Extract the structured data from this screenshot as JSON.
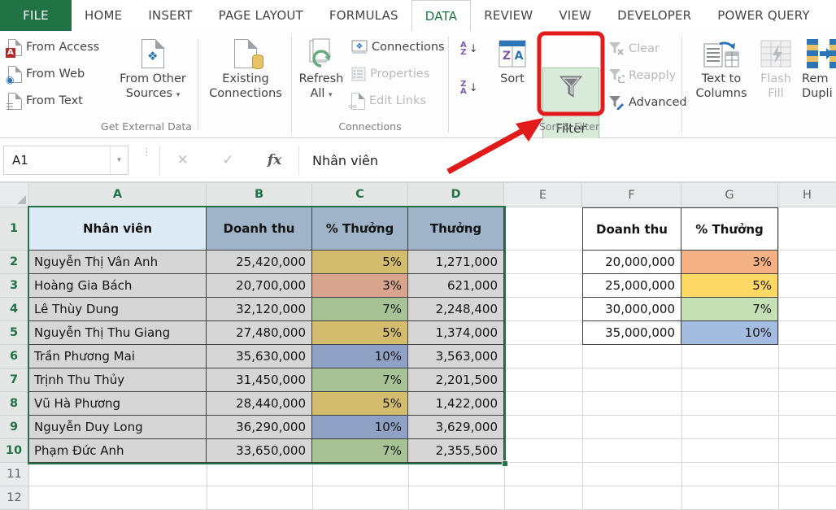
{
  "tabs": [
    {
      "label": "FILE",
      "style": "file"
    },
    {
      "label": "HOME",
      "style": ""
    },
    {
      "label": "INSERT",
      "style": ""
    },
    {
      "label": "PAGE LAYOUT",
      "style": ""
    },
    {
      "label": "FORMULAS",
      "style": ""
    },
    {
      "label": "DATA",
      "style": "active"
    },
    {
      "label": "REVIEW",
      "style": ""
    },
    {
      "label": "VIEW",
      "style": ""
    },
    {
      "label": "DEVELOPER",
      "style": ""
    },
    {
      "label": "POWER QUERY",
      "style": ""
    }
  ],
  "ribbon": {
    "get_external_data": {
      "label": "Get External Data",
      "from_access": "From Access",
      "from_web": "From Web",
      "from_text": "From Text",
      "from_other_l1": "From Other",
      "from_other_l2": "Sources",
      "existing_l1": "Existing",
      "existing_l2": "Connections"
    },
    "connections_group": {
      "label": "Connections",
      "refresh_l1": "Refresh",
      "refresh_l2": "All",
      "connections": "Connections",
      "properties": "Properties",
      "edit_links": "Edit Links"
    },
    "sort_filter": {
      "label": "Sort & Filter",
      "sort": "Sort",
      "filter": "Filter",
      "clear": "Clear",
      "reapply": "Reapply",
      "advanced": "Advanced"
    },
    "data_tools": {
      "text_to_columns_l1": "Text to",
      "text_to_columns_l2": "Columns",
      "flash_fill_l1": "Flash",
      "flash_fill_l2": "Fill",
      "remove_dup_l1": "Rem",
      "remove_dup_l2": "Dupli"
    }
  },
  "formula_bar": {
    "name_box": "A1",
    "fx": "fx",
    "value": "Nhân viên"
  },
  "grid": {
    "col_letters": [
      "A",
      "B",
      "C",
      "D",
      "E",
      "F",
      "G",
      "H"
    ],
    "row_numbers": [
      "1",
      "2",
      "3",
      "4",
      "5",
      "6",
      "7",
      "8",
      "9",
      "10",
      "11",
      "12"
    ],
    "selected_cols": [
      "A",
      "B",
      "C",
      "D"
    ],
    "selected_rows": [
      "1",
      "2",
      "3",
      "4",
      "5",
      "6",
      "7",
      "8",
      "9",
      "10"
    ]
  },
  "main_table": {
    "headers": [
      "Nhân viên",
      "Doanh thu",
      "% Thưởng",
      "Thưởng"
    ],
    "rows": [
      {
        "name": "Nguyễn Thị Vân Anh",
        "revenue": "25,420,000",
        "pct": "5%",
        "bonus": "1,271,000"
      },
      {
        "name": "Hoàng Gia Bách",
        "revenue": "20,700,000",
        "pct": "3%",
        "bonus": "621,000"
      },
      {
        "name": "Lê Thùy Dung",
        "revenue": "32,120,000",
        "pct": "7%",
        "bonus": "2,248,400"
      },
      {
        "name": "Nguyễn Thị Thu Giang",
        "revenue": "27,480,000",
        "pct": "5%",
        "bonus": "1,374,000"
      },
      {
        "name": "Trần Phương Mai",
        "revenue": "35,630,000",
        "pct": "10%",
        "bonus": "3,563,000"
      },
      {
        "name": "Trịnh Thu Thủy",
        "revenue": "31,450,000",
        "pct": "7%",
        "bonus": "2,201,500"
      },
      {
        "name": "Vũ Hà Phương",
        "revenue": "28,440,000",
        "pct": "5%",
        "bonus": "1,422,000"
      },
      {
        "name": "Nguyễn Duy Long",
        "revenue": "36,290,000",
        "pct": "10%",
        "bonus": "3,629,000"
      },
      {
        "name": "Phạm Đức Anh",
        "revenue": "33,650,000",
        "pct": "7%",
        "bonus": "2,355,500"
      }
    ]
  },
  "lookup_table": {
    "headers": [
      "Doanh thu",
      "% Thưởng"
    ],
    "rows": [
      {
        "revenue": "20,000,000",
        "pct": "3%"
      },
      {
        "revenue": "25,000,000",
        "pct": "5%"
      },
      {
        "revenue": "30,000,000",
        "pct": "7%"
      },
      {
        "revenue": "35,000,000",
        "pct": "10%"
      }
    ]
  },
  "colors": {
    "excel_green": "#217346",
    "highlight_red": "#e11a1a",
    "filter_button_bg": "#d9ebda",
    "active_cell_fill": "#ddebf7",
    "selected_header_fill": "#9fb4c8",
    "selected_cell_fill": "#d6d6d6",
    "pct_3": "#f4b183",
    "pct_5": "#ffd966",
    "pct_7": "#c5e0b4",
    "pct_10": "#a4bcdf",
    "pct_3_sel": "#d8a48e",
    "pct_5_sel": "#d4bc6e",
    "pct_7_sel": "#a7c295",
    "pct_10_sel": "#8fa1c4"
  }
}
